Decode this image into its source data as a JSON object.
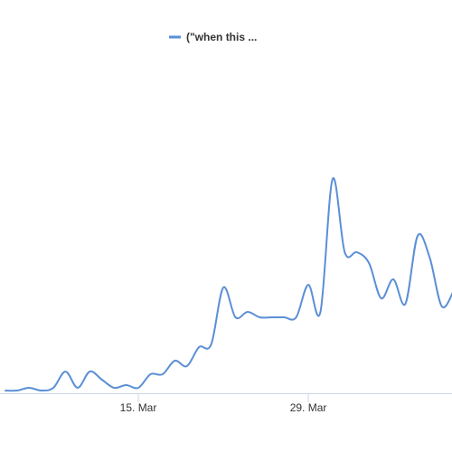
{
  "chart_data": {
    "type": "line",
    "categories": [
      null,
      null,
      null,
      null,
      null,
      null,
      null,
      null,
      null,
      null,
      null,
      "15. Mar",
      null,
      null,
      null,
      null,
      null,
      null,
      null,
      null,
      null,
      null,
      null,
      null,
      null,
      "29. Mar",
      null,
      null,
      null,
      null,
      null,
      null,
      null,
      null,
      null,
      null,
      null,
      null
    ],
    "series": [
      {
        "name": "(\"when this ...",
        "color": "#5b8fd6",
        "values": [
          1,
          1,
          2,
          1,
          2,
          8,
          2,
          8,
          5,
          2,
          3,
          2,
          7,
          7,
          12,
          10,
          17,
          18,
          39,
          28,
          30,
          28,
          28,
          28,
          28,
          40,
          30,
          79,
          52,
          52,
          48,
          35,
          42,
          33,
          58,
          50,
          32,
          38
        ]
      }
    ],
    "ylim": [
      0,
      100
    ]
  }
}
